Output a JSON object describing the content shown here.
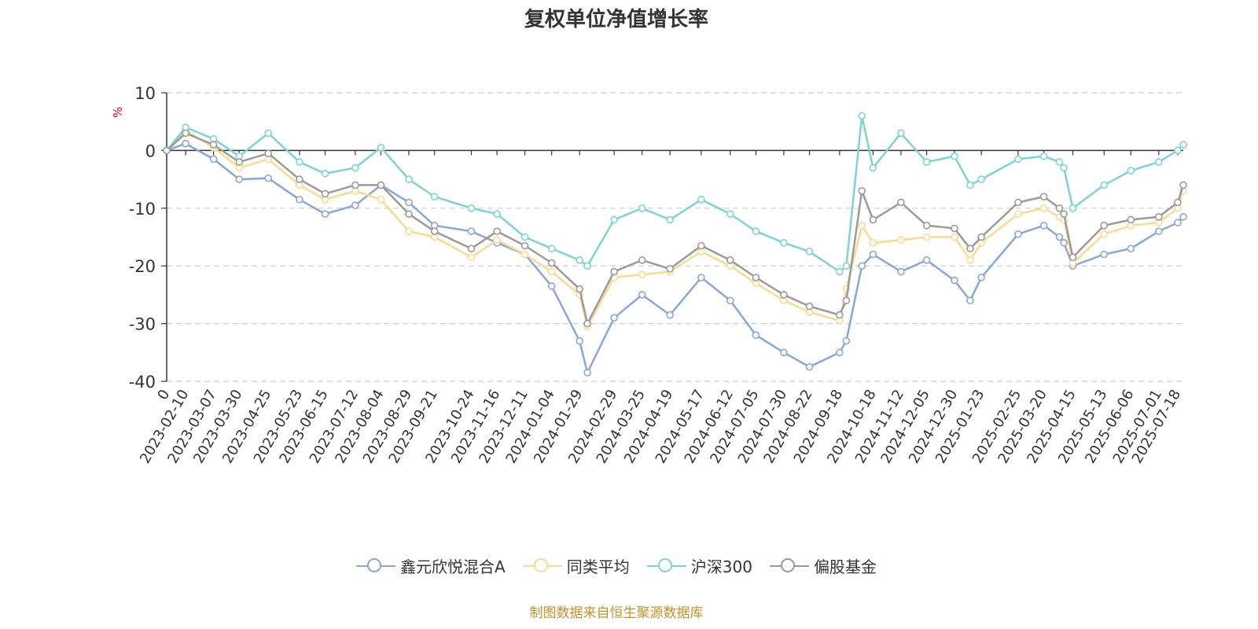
{
  "title": "复权单位净值增长率",
  "unit_label": "%",
  "source": "制图数据来自恒生聚源数据库",
  "colors": {
    "fund": "#88a7d8",
    "peer_avg": "#fbd98f",
    "hs300": "#7dd3d3",
    "equity_fund": "#9a9a9a",
    "grid": "#cccccc",
    "axis": "#333333"
  },
  "chart_data": {
    "type": "line",
    "title": "复权单位净值增长率",
    "xlabel": "",
    "ylabel": "%",
    "ylim": [
      -40,
      10
    ],
    "yticks": [
      10,
      0,
      -10,
      -20,
      -30,
      -40
    ],
    "grid": true,
    "legend_position": "bottom",
    "x_ticks": [
      "0",
      "2023-02-10",
      "2023-03-07",
      "2023-03-30",
      "2023-04-25",
      "2023-05-23",
      "2023-06-15",
      "2023-07-12",
      "2023-08-04",
      "2023-08-29",
      "2023-09-21",
      "2023-10-24",
      "2023-11-16",
      "2023-12-11",
      "2024-01-04",
      "2024-01-29",
      "2024-02-29",
      "2024-03-25",
      "2024-04-19",
      "2024-05-17",
      "2024-06-12",
      "2024-07-05",
      "2024-07-30",
      "2024-08-22",
      "2024-09-18",
      "2024-10-18",
      "2024-11-12",
      "2024-12-05",
      "2024-12-30",
      "2025-01-23",
      "2025-02-25",
      "2025-03-20",
      "2025-04-15",
      "2025-05-13",
      "2025-06-06",
      "2025-07-01",
      "2025-07-18"
    ],
    "x": [
      "0",
      "2023-02-10",
      "2023-03-07",
      "2023-03-30",
      "2023-04-25",
      "2023-05-23",
      "2023-06-15",
      "2023-07-12",
      "2023-08-04",
      "2023-08-29",
      "2023-09-21",
      "2023-10-24",
      "2023-11-16",
      "2023-12-11",
      "2024-01-04",
      "2024-01-29",
      "2024-02-05",
      "2024-02-29",
      "2024-03-25",
      "2024-04-19",
      "2024-05-17",
      "2024-06-12",
      "2024-07-05",
      "2024-07-30",
      "2024-08-22",
      "2024-09-18",
      "2024-09-24",
      "2024-10-08",
      "2024-10-18",
      "2024-11-12",
      "2024-12-05",
      "2024-12-30",
      "2025-01-13",
      "2025-01-23",
      "2025-02-25",
      "2025-03-20",
      "2025-04-03",
      "2025-04-07",
      "2025-04-15",
      "2025-05-13",
      "2025-06-06",
      "2025-07-01",
      "2025-07-18",
      "2025-07-23"
    ],
    "series": [
      {
        "name": "鑫元欣悦混合A",
        "color": "#88a7d8",
        "values": [
          0,
          1.2,
          -1.5,
          -5,
          -4.8,
          -8.5,
          -11,
          -9.5,
          -6,
          -9,
          -13,
          -14,
          -16,
          -18,
          -23.5,
          -33,
          -38.5,
          -29,
          -25,
          -28.5,
          -22,
          -26,
          -32,
          -35,
          -37.5,
          -35,
          -33,
          -20,
          -18,
          -21,
          -19,
          -22.5,
          -26,
          -22,
          -14.5,
          -13,
          -15,
          -16,
          -20,
          -18,
          -17,
          -14,
          -12.5,
          -11.5
        ]
      },
      {
        "name": "同类平均",
        "color": "#fbd98f",
        "values": [
          0,
          3.5,
          0.5,
          -3,
          -1.5,
          -6,
          -8.5,
          -7,
          -8.5,
          -14,
          -15,
          -18.5,
          -15.5,
          -18,
          -21,
          -25,
          -30.5,
          -22,
          -21.5,
          -21,
          -17.5,
          -20,
          -23,
          -26,
          -28,
          -29.5,
          -24,
          -13,
          -16,
          -15.5,
          -15,
          -15,
          -19,
          -16,
          -11,
          -10,
          -11.5,
          -12,
          -19.5,
          -14.5,
          -13,
          -12.5,
          -10,
          -7
        ]
      },
      {
        "name": "沪深300",
        "color": "#7dd3d3",
        "values": [
          0,
          4,
          2,
          -1,
          3,
          -2,
          -4,
          -3,
          0.5,
          -5,
          -8,
          -10,
          -11,
          -15,
          -17,
          -19,
          -20,
          -12,
          -10,
          -12,
          -8.5,
          -11,
          -14,
          -16,
          -17.5,
          -21,
          -20,
          6,
          -3,
          3,
          -2,
          -1,
          -6,
          -5,
          -1.5,
          -1,
          -2,
          -3,
          -10,
          -6,
          -3.5,
          -2,
          0,
          1
        ]
      },
      {
        "name": "偏股基金",
        "color": "#9a9a9a",
        "values": [
          0,
          3,
          1,
          -2,
          -0.5,
          -5,
          -7.5,
          -6,
          -6,
          -11,
          -14,
          -17,
          -14,
          -16.5,
          -19.5,
          -24,
          -30,
          -21,
          -19,
          -20.5,
          -16.5,
          -19,
          -22,
          -25,
          -27,
          -28.5,
          -26,
          -7,
          -12,
          -9,
          -13,
          -13.5,
          -17,
          -15,
          -9,
          -8,
          -10,
          -11,
          -18.5,
          -13,
          -12,
          -11.5,
          -9,
          -6
        ]
      }
    ]
  }
}
